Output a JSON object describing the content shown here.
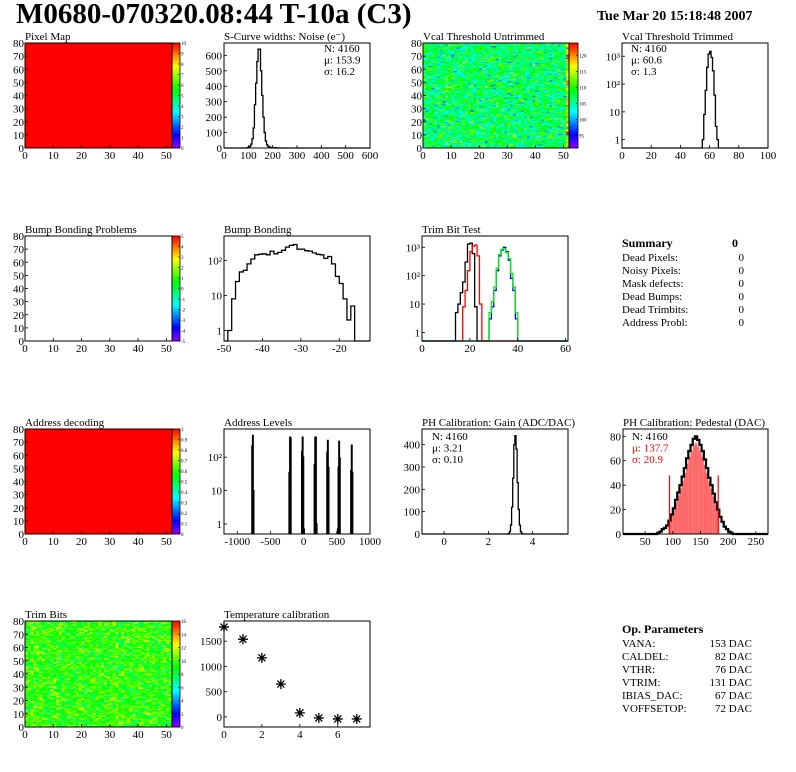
{
  "header": {
    "title": "M0680-070320.08:44 T-10a (C3)",
    "date": "Tue Mar 20 15:18:48 2007"
  },
  "palette": "rainbow",
  "chart_data": [
    {
      "id": "pixel-map",
      "type": "heatmap",
      "title": "Pixel Map",
      "xlim": [
        0,
        52
      ],
      "ylim": [
        0,
        80
      ],
      "xticks": [
        "0",
        "10",
        "20",
        "30",
        "40",
        "50"
      ],
      "yticks": [
        "0",
        "10",
        "20",
        "30",
        "40",
        "50",
        "60",
        "70",
        "80"
      ],
      "zlim": [
        0,
        10
      ],
      "ztick_values": [
        0,
        1,
        2,
        3,
        4,
        5,
        6,
        7,
        8,
        9,
        10
      ],
      "ztick_labels": [
        "0",
        "1",
        "2",
        "3",
        "4",
        "5",
        "6",
        "7",
        "8",
        "9",
        "10"
      ],
      "uniform_value": 10
    },
    {
      "id": "s-curve",
      "type": "bar",
      "title": "S-Curve widths: Noise (e⁻)",
      "xlim": [
        0,
        600
      ],
      "ylim": [
        0,
        680
      ],
      "xticks": [
        "0",
        "100",
        "200",
        "300",
        "400",
        "500",
        "600"
      ],
      "yticks": [
        "0",
        "100",
        "200",
        "300",
        "400",
        "500",
        "600"
      ],
      "ytick_values": [
        0,
        100,
        200,
        300,
        400,
        500,
        600
      ],
      "xtick_values": [
        0,
        100,
        200,
        300,
        400,
        500,
        600
      ],
      "series": [
        {
          "color": "#000000",
          "bin_start": 95,
          "bin_width": 5,
          "values": [
            2,
            5,
            10,
            25,
            60,
            130,
            280,
            420,
            560,
            640,
            640,
            500,
            340,
            200,
            100,
            45,
            20,
            10,
            6,
            3,
            2,
            1,
            0,
            2,
            1,
            0,
            1
          ]
        }
      ],
      "stats": [
        {
          "text": "N: 4160",
          "color": "#000000"
        },
        {
          "text": "μ: 153.9",
          "color": "#000000"
        },
        {
          "text": "σ: 16.2",
          "color": "#000000"
        }
      ]
    },
    {
      "id": "vcal-untrimmed",
      "type": "heatmap",
      "title": "Vcal Threshold Untrimmed",
      "xlim": [
        0,
        52
      ],
      "ylim": [
        0,
        80
      ],
      "xticks": [
        "0",
        "10",
        "20",
        "30",
        "40",
        "50"
      ],
      "yticks": [
        "0",
        "10",
        "20",
        "30",
        "40",
        "50",
        "60",
        "70",
        "80"
      ],
      "zlim": [
        91,
        124
      ],
      "ztick_values": [
        95,
        100,
        105,
        110,
        115,
        120
      ],
      "ztick_labels": [
        "95",
        "100",
        "105",
        "110",
        "115",
        "120"
      ],
      "z_mean": 107,
      "z_sigma": 3.5
    },
    {
      "id": "vcal-trimmed",
      "type": "bar",
      "title": "Vcal Threshold Trimmed",
      "log": true,
      "xlim": [
        0,
        100
      ],
      "ylim": [
        0.5,
        3000
      ],
      "xticks": [
        "0",
        "20",
        "40",
        "60",
        "80",
        "100"
      ],
      "xtick_values": [
        0,
        20,
        40,
        60,
        80,
        100
      ],
      "yticks": [
        "1",
        "10",
        "10²",
        "10³"
      ],
      "ytick_values": [
        1,
        10,
        100,
        1000
      ],
      "series": [
        {
          "color": "#000000",
          "bin_start": 55,
          "bin_width": 1,
          "values": [
            1,
            8,
            60,
            400,
            1200,
            1500,
            900,
            300,
            40,
            3,
            1
          ]
        }
      ],
      "stats": [
        {
          "text": "N: 4160",
          "color": "#000000"
        },
        {
          "text": "μ: 60.6",
          "color": "#000000"
        },
        {
          "text": "σ:  1.3",
          "color": "#000000"
        }
      ]
    },
    {
      "id": "bump-bonding-problems",
      "type": "heatmap",
      "title": "Bump Bonding Problems",
      "xlim": [
        0,
        52
      ],
      "ylim": [
        0,
        80
      ],
      "xticks": [
        "0",
        "10",
        "20",
        "30",
        "40",
        "50"
      ],
      "yticks": [
        "0",
        "10",
        "20",
        "30",
        "40",
        "50",
        "60",
        "70",
        "80"
      ],
      "zlim": [
        -5,
        5
      ],
      "ztick_values": [
        -5,
        -4,
        -3,
        -2,
        -1,
        0,
        1,
        2,
        3,
        4,
        5
      ],
      "ztick_labels": [
        "-5",
        "-4",
        "-3",
        "-2",
        "-1",
        "0",
        "1",
        "2",
        "3",
        "4",
        "5"
      ],
      "empty": true
    },
    {
      "id": "bump-bonding",
      "type": "bar",
      "title": "Bump Bonding",
      "log": true,
      "xlim": [
        -50,
        -12
      ],
      "ylim": [
        0.5,
        500
      ],
      "xticks": [
        "-50",
        "-40",
        "-30",
        "-20"
      ],
      "xtick_values": [
        -50,
        -40,
        -30,
        -20
      ],
      "yticks": [
        "1",
        "10",
        "10²"
      ],
      "ytick_values": [
        1,
        10,
        100
      ],
      "series": [
        {
          "color": "#000000",
          "bin_start": -49,
          "bin_width": 1,
          "values": [
            1,
            8,
            25,
            47,
            52,
            80,
            110,
            145,
            150,
            155,
            145,
            185,
            155,
            170,
            195,
            240,
            270,
            285,
            210,
            210,
            190,
            185,
            165,
            150,
            145,
            115,
            130,
            80,
            35,
            22,
            8,
            2,
            5
          ]
        }
      ]
    },
    {
      "id": "trim-bit-test",
      "type": "bar",
      "title": "Trim Bit Test",
      "log": true,
      "xlim": [
        0,
        61
      ],
      "ylim": [
        0.5,
        2500
      ],
      "xticks": [
        "0",
        "20",
        "40",
        "60"
      ],
      "xtick_values": [
        0,
        20,
        40,
        60
      ],
      "yticks": [
        "1",
        "10",
        "10²",
        "10³"
      ],
      "ytick_values": [
        1,
        10,
        100,
        1000
      ],
      "series": [
        {
          "color": "#000000",
          "bin_start": 14,
          "bin_width": 1,
          "values": [
            5,
            10,
            25,
            60,
            300,
            1300,
            1400,
            600,
            8
          ]
        },
        {
          "color": "#ff0000",
          "bin_start": 16,
          "bin_width": 1,
          "values": [
            0,
            8,
            30,
            150,
            700,
            1100,
            1200,
            500,
            10
          ]
        },
        {
          "color": "#0000ff",
          "bin_start": 28,
          "bin_width": 1,
          "values": [
            3,
            8,
            30,
            150,
            500,
            800,
            1000,
            700,
            350,
            80,
            30,
            3,
            0.5
          ]
        },
        {
          "color": "#00ee00",
          "bin_start": 28,
          "bin_width": 1,
          "values": [
            5,
            12,
            40,
            180,
            550,
            850,
            900,
            650,
            400,
            120,
            40,
            5,
            0.5
          ]
        }
      ]
    },
    {
      "id": "address-decoding",
      "type": "heatmap",
      "title": "Address decoding",
      "xlim": [
        0,
        52
      ],
      "ylim": [
        0,
        80
      ],
      "xticks": [
        "0",
        "10",
        "20",
        "30",
        "40",
        "50"
      ],
      "yticks": [
        "0",
        "10",
        "20",
        "30",
        "40",
        "50",
        "60",
        "70",
        "80"
      ],
      "zlim": [
        0,
        1
      ],
      "ztick_values": [
        0,
        0.1,
        0.2,
        0.3,
        0.4,
        0.5,
        0.6,
        0.7,
        0.8,
        0.9,
        1
      ],
      "ztick_labels": [
        "0",
        "0.1",
        "0.2",
        "0.3",
        "0.4",
        "0.5",
        "0.6",
        "0.7",
        "0.8",
        "0.9",
        "1"
      ],
      "uniform_value": 1
    },
    {
      "id": "address-levels",
      "type": "bar",
      "title": "Address Levels",
      "log": true,
      "xlim": [
        -1200,
        1000
      ],
      "ylim": [
        0.5,
        700
      ],
      "xticks": [
        "-1000",
        "-500",
        "0",
        "500",
        "1000"
      ],
      "xtick_values": [
        -1000,
        -500,
        0,
        500,
        1000
      ],
      "yticks": [
        "1",
        "10",
        "10²"
      ],
      "ytick_values": [
        1,
        10,
        100
      ],
      "series": [
        {
          "color": "#000000",
          "bins": [
            [
              -780,
              220
            ],
            [
              -770,
              450
            ],
            [
              -760,
              10
            ],
            [
              -220,
              35
            ],
            [
              -210,
              400
            ],
            [
              -200,
              380
            ],
            [
              -30,
              150
            ],
            [
              -20,
              400
            ],
            [
              -10,
              100
            ],
            [
              0,
              0.7
            ],
            [
              160,
              60
            ],
            [
              170,
              400
            ],
            [
              180,
              400
            ],
            [
              190,
              1
            ],
            [
              350,
              140
            ],
            [
              360,
              320
            ],
            [
              370,
              50
            ],
            [
              510,
              0.7
            ],
            [
              520,
              50
            ],
            [
              530,
              300
            ],
            [
              540,
              95
            ],
            [
              710,
              40
            ],
            [
              720,
              230
            ],
            [
              730,
              35
            ]
          ],
          "bin_width": 10
        }
      ]
    },
    {
      "id": "ph-gain",
      "type": "bar",
      "title": "PH Calibration: Gain (ADC/DAC)",
      "xlim": [
        -1,
        5.6
      ],
      "ylim": [
        0,
        470
      ],
      "xticks": [
        "0",
        "2",
        "4"
      ],
      "xtick_values": [
        0,
        2,
        4
      ],
      "yticks": [
        "0",
        "100",
        "200",
        "300",
        "400"
      ],
      "ytick_values": [
        0,
        100,
        200,
        300,
        400
      ],
      "series": [
        {
          "color": "#000000",
          "bin_start": 2.9,
          "bin_width": 0.05,
          "values": [
            2,
            10,
            40,
            120,
            250,
            400,
            440,
            380,
            230,
            110,
            40,
            10,
            2
          ]
        }
      ],
      "stats": [
        {
          "text": "N: 4160",
          "color": "#000000"
        },
        {
          "text": "μ: 3.21",
          "color": "#000000"
        },
        {
          "text": "σ: 0.10",
          "color": "#000000"
        }
      ]
    },
    {
      "id": "ph-pedestal",
      "type": "bar",
      "title": "PH Calibration: Pedestal (DAC)",
      "xlim": [
        10,
        272
      ],
      "ylim": [
        0,
        86
      ],
      "xticks": [
        "50",
        "100",
        "150",
        "200",
        "250"
      ],
      "xtick_values": [
        50,
        100,
        150,
        200,
        250
      ],
      "yticks": [
        "0",
        "20",
        "40",
        "60",
        "80"
      ],
      "ytick_values": [
        0,
        20,
        40,
        60,
        80
      ],
      "series": [
        {
          "color": "#000000",
          "bin_start": 72,
          "bin_width": 4,
          "values": [
            1,
            2,
            4,
            5,
            7,
            11,
            16,
            21,
            28,
            34,
            40,
            47,
            54,
            62,
            68,
            73,
            78,
            80,
            77,
            73,
            68,
            61,
            54,
            46,
            40,
            33,
            26,
            20,
            14,
            10,
            6,
            4,
            2,
            1
          ]
        }
      ],
      "fit": {
        "color": "#ff0000",
        "range": [
          94,
          182
        ],
        "line_height": 48
      },
      "stats": [
        {
          "text": "N: 4160",
          "color": "#000000"
        },
        {
          "text": "μ: 137.7",
          "color": "#ff0000"
        },
        {
          "text": "σ: 20.9",
          "color": "#ff0000"
        }
      ]
    },
    {
      "id": "trim-bits",
      "type": "heatmap",
      "title": "Trim Bits",
      "xlim": [
        0,
        52
      ],
      "ylim": [
        0,
        80
      ],
      "xticks": [
        "0",
        "10",
        "20",
        "30",
        "40",
        "50"
      ],
      "yticks": [
        "0",
        "10",
        "20",
        "30",
        "40",
        "50",
        "60",
        "70",
        "80"
      ],
      "zlim": [
        0,
        16
      ],
      "ztick_values": [
        0,
        2,
        4,
        6,
        8,
        10,
        12,
        14,
        16
      ],
      "ztick_labels": [
        "0",
        "2",
        "4",
        "6",
        "8",
        "10",
        "12",
        "14",
        "16"
      ],
      "z_mean": 9.5,
      "z_sigma": 1.3
    },
    {
      "id": "temperature-calibration",
      "type": "scatter",
      "title": "Temperature calibration",
      "xlim": [
        0,
        7.7
      ],
      "ylim": [
        -200,
        1900
      ],
      "xticks": [
        "0",
        "2",
        "4",
        "6"
      ],
      "xtick_values": [
        0,
        2,
        4,
        6
      ],
      "yticks": [
        "0",
        "500",
        "1000",
        "1500"
      ],
      "ytick_values": [
        0,
        500,
        1000,
        1500
      ],
      "x": [
        0,
        1,
        2,
        3,
        4,
        5,
        6,
        7
      ],
      "y": [
        1780,
        1540,
        1170,
        650,
        80,
        -20,
        -40,
        -40
      ]
    }
  ],
  "summary": {
    "title": "Summary",
    "total": "0",
    "rows": [
      {
        "label": "Dead Pixels:",
        "value": "0"
      },
      {
        "label": "Noisy Pixels:",
        "value": "0"
      },
      {
        "label": "Mask defects:",
        "value": "0"
      },
      {
        "label": "Dead Bumps:",
        "value": "0"
      },
      {
        "label": "Dead Trimbits:",
        "value": "0"
      },
      {
        "label": "Address Probl:",
        "value": "0"
      }
    ]
  },
  "op_params": {
    "title": "Op. Parameters",
    "rows": [
      {
        "label": "VANA:",
        "value": "153 DAC"
      },
      {
        "label": "CALDEL:",
        "value": "82 DAC"
      },
      {
        "label": "VTHR:",
        "value": "76 DAC"
      },
      {
        "label": "VTRIM:",
        "value": "131 DAC"
      },
      {
        "label": "IBIAS_DAC:",
        "value": "67 DAC"
      },
      {
        "label": "VOFFSETOP:",
        "value": "72 DAC"
      }
    ]
  }
}
